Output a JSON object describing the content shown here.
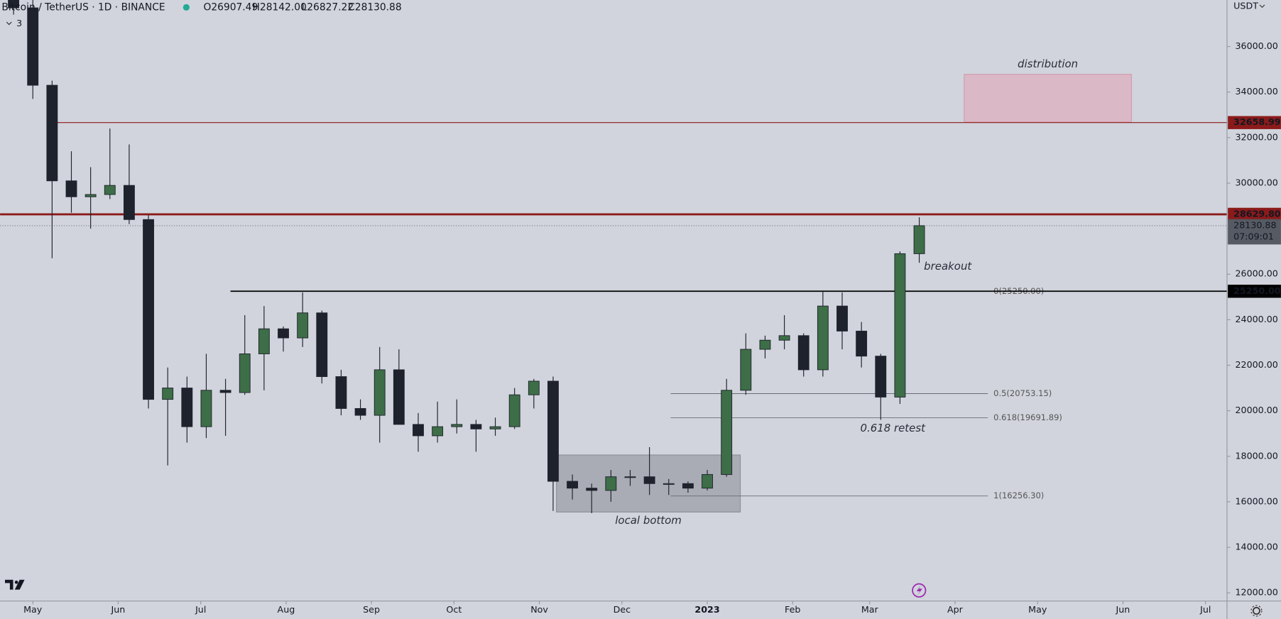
{
  "header": {
    "symbol": "Bitcoin / TetherUS · 1D · BINANCE",
    "open": "O26907.49",
    "high": "H28142.00",
    "low": "L26827.22",
    "close": "C28130.88",
    "indicators": "3",
    "currency": "USDT"
  },
  "chart_data": {
    "type": "candlestick",
    "up_color": "#3d6e47",
    "down_color": "#1e222d",
    "x": [
      -7,
      0,
      7,
      14,
      21,
      28,
      35,
      42,
      49,
      56,
      63,
      70,
      77,
      84,
      91,
      98,
      105,
      112,
      119,
      126,
      133,
      140,
      147,
      154,
      161,
      168,
      175,
      182,
      189,
      196,
      203,
      210,
      217,
      224,
      231,
      238,
      245,
      252,
      259,
      266,
      273,
      280,
      287,
      294,
      301,
      308,
      315,
      322
    ],
    "open": [
      38500,
      37700,
      34300,
      30100,
      29400,
      29500,
      29900,
      28400,
      20500,
      21000,
      19300,
      20900,
      20800,
      22500,
      23600,
      23200,
      24300,
      21500,
      20100,
      19800,
      21800,
      19400,
      18900,
      19300,
      19400,
      19200,
      19300,
      20700,
      21300,
      16900,
      16600,
      16500,
      17100,
      17100,
      16800,
      16800,
      16600,
      17200,
      20900,
      22700,
      23100,
      23300,
      21800,
      24600,
      23500,
      22400,
      20600,
      26900
    ],
    "high": [
      39000,
      40000,
      34500,
      31400,
      30700,
      32400,
      31700,
      28600,
      21900,
      21500,
      22500,
      21400,
      24200,
      24600,
      23700,
      25200,
      24400,
      21800,
      20500,
      22800,
      22700,
      19900,
      20400,
      20500,
      19600,
      19700,
      21000,
      21400,
      21500,
      17200,
      16800,
      17400,
      17400,
      18400,
      17000,
      16900,
      17400,
      21400,
      23400,
      23300,
      24200,
      23400,
      25250,
      25200,
      23900,
      22500,
      27000,
      28500
    ],
    "low": [
      37400,
      33700,
      26700,
      28700,
      28000,
      29300,
      28200,
      20100,
      17600,
      18600,
      18800,
      18900,
      20700,
      20900,
      22600,
      22800,
      21200,
      19800,
      19600,
      18600,
      19400,
      18200,
      18600,
      19000,
      18200,
      18900,
      19200,
      20100,
      15600,
      16100,
      15500,
      16000,
      16700,
      16300,
      16300,
      16400,
      16500,
      17100,
      20700,
      22300,
      22700,
      21500,
      21500,
      22700,
      21900,
      19600,
      20300,
      26500
    ],
    "close": [
      37700,
      34300,
      30100,
      29400,
      29500,
      29900,
      28400,
      20500,
      21000,
      19300,
      20900,
      20800,
      22500,
      23600,
      23200,
      24300,
      21500,
      20100,
      19800,
      21800,
      19400,
      18900,
      19300,
      19400,
      19200,
      19300,
      20700,
      21300,
      16900,
      16600,
      16500,
      17100,
      17100,
      16800,
      16800,
      16600,
      17200,
      20900,
      22700,
      23100,
      23300,
      21800,
      24600,
      23500,
      22400,
      20600,
      26900,
      28130.88
    ],
    "xlim": [
      -11.9,
      433.8
    ],
    "xticks": [
      {
        "value": 0,
        "label": "May"
      },
      {
        "value": 31,
        "label": "Jun"
      },
      {
        "value": 61,
        "label": "Jul"
      },
      {
        "value": 92,
        "label": "Aug"
      },
      {
        "value": 123,
        "label": "Sep"
      },
      {
        "value": 153,
        "label": "Oct"
      },
      {
        "value": 184,
        "label": "Nov"
      },
      {
        "value": 214,
        "label": "Dec"
      },
      {
        "value": 245,
        "label": "2023"
      },
      {
        "value": 276,
        "label": "Feb"
      },
      {
        "value": 304,
        "label": "Mar"
      },
      {
        "value": 335,
        "label": "Apr"
      },
      {
        "value": 365,
        "label": "May"
      },
      {
        "value": 396,
        "label": "Jun"
      },
      {
        "value": 426,
        "label": "Jul"
      }
    ],
    "ylim": [
      11641,
      38045
    ],
    "yticks": [
      {
        "value": 12000,
        "label": "12000.00"
      },
      {
        "value": 14000,
        "label": "14000.00"
      },
      {
        "value": 16000,
        "label": "16000.00"
      },
      {
        "value": 18000,
        "label": "18000.00"
      },
      {
        "value": 20000,
        "label": "20000.00"
      },
      {
        "value": 22000,
        "label": "22000.00"
      },
      {
        "value": 24000,
        "label": "24000.00"
      },
      {
        "value": 26000,
        "label": "26000.00"
      },
      {
        "value": 28000,
        "label": "28000.00"
      },
      {
        "value": 30000,
        "label": "30000.00"
      },
      {
        "value": 32000,
        "label": "32000.00"
      },
      {
        "value": 34000,
        "label": "34000.00"
      },
      {
        "value": 36000,
        "label": "36000.00"
      }
    ],
    "levels": [
      {
        "value": 32658.99,
        "label": "32658.99",
        "start": 8.9,
        "color": "#8b1a1a",
        "width": 1
      },
      {
        "value": 28629.8,
        "label": "28629.80",
        "start": -11.9,
        "color": "#8b1a1a",
        "width": 2.5
      },
      {
        "value": 25250.0,
        "label": "25250.00",
        "start": 71.8,
        "color": "#000000",
        "width": 1.5
      }
    ],
    "last_price": {
      "value": 28130.88,
      "label": "28130.88",
      "countdown": "07:09:01",
      "color": "#555a63"
    },
    "fib": {
      "start": 231.7,
      "end": 346.9,
      "levels": [
        {
          "value": 25250.0,
          "label": "0(25250.00)"
        },
        {
          "value": 20753.15,
          "label": "0.5(20753.15)"
        },
        {
          "value": 19691.89,
          "label": "0.618(19691.89)"
        },
        {
          "value": 16256.3,
          "label": "1(16256.30)"
        }
      ]
    },
    "zones": [
      {
        "label": "distribution",
        "x": [
          338.3,
          399.1
        ],
        "y": [
          32680,
          34780
        ],
        "color": "rgba(230,150,170,0.45)"
      },
      {
        "label": "local bottom",
        "x": [
          190.2,
          257.0
        ],
        "y": [
          15550,
          18060
        ],
        "color": "rgba(120,123,134,0.45)"
      }
    ],
    "annotations": [
      "breakout",
      "0.618 retest"
    ]
  }
}
